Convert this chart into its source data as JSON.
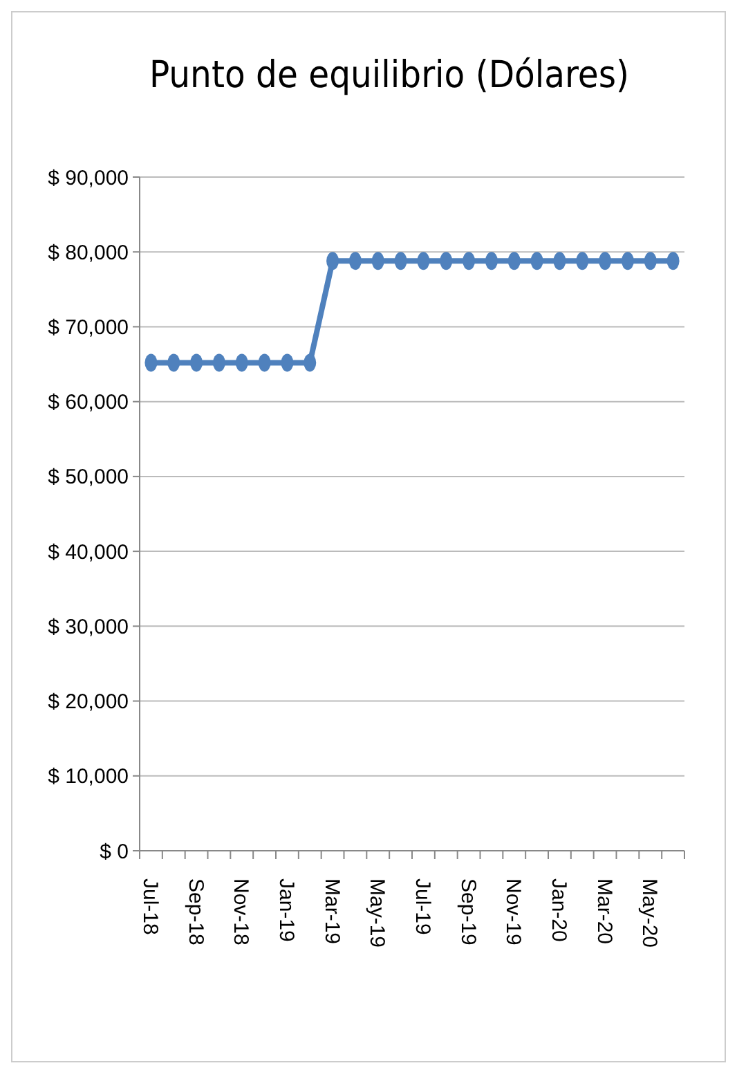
{
  "chart_data": {
    "type": "line",
    "title": "Punto de equilibrio (Dólares)",
    "categories": [
      "Jul-18",
      null,
      "Sep-18",
      null,
      "Nov-18",
      null,
      "Jan-19",
      null,
      "Mar-19",
      null,
      "May-19",
      null,
      "Jul-19",
      null,
      "Sep-19",
      null,
      "Nov-19",
      null,
      "Jan-20",
      null,
      "Mar-20",
      null,
      "May-20",
      null
    ],
    "series": [
      {
        "color": "#4f81bd",
        "values": [
          65200,
          65200,
          65200,
          65200,
          65200,
          65200,
          65200,
          65200,
          78800,
          78800,
          78800,
          78800,
          78800,
          78800,
          78800,
          78800,
          78800,
          78800,
          78800,
          78800,
          78800,
          78800,
          78800,
          78800
        ]
      }
    ],
    "ylim": [
      0,
      90000
    ],
    "yticks": [
      {
        "value": 0,
        "label": "$ 0"
      },
      {
        "value": 10000,
        "label": "$ 10,000"
      },
      {
        "value": 20000,
        "label": "$ 20,000"
      },
      {
        "value": 30000,
        "label": "$ 30,000"
      },
      {
        "value": 40000,
        "label": "$ 40,000"
      },
      {
        "value": 50000,
        "label": "$ 50,000"
      },
      {
        "value": 60000,
        "label": "$ 60,000"
      },
      {
        "value": 70000,
        "label": "$ 70,000"
      },
      {
        "value": 80000,
        "label": "$ 80,000"
      },
      {
        "value": 90000,
        "label": "$ 90,000"
      }
    ],
    "grid": "y",
    "marker": "circle",
    "line_style": "solid"
  }
}
